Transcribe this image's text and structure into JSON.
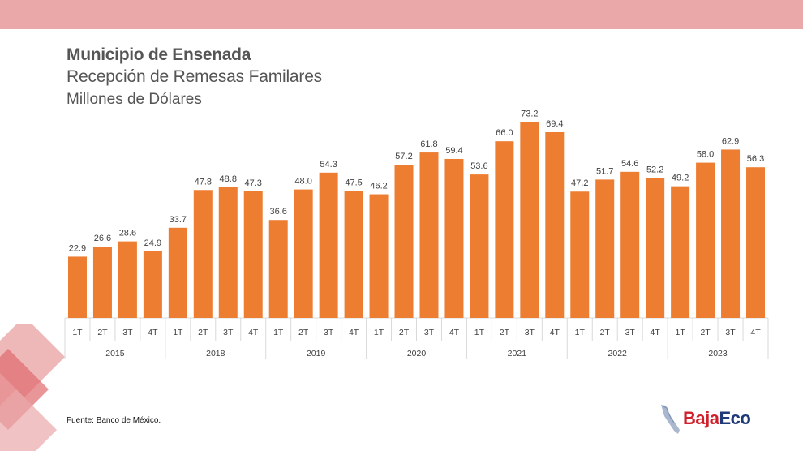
{
  "header": {
    "title": "Municipio de Ensenada",
    "subtitle": "Recepción de Remesas Familares",
    "unit": "Millones de Dólares"
  },
  "footer": {
    "source": "Fuente: Banco de México."
  },
  "logo": {
    "part1": "Baja",
    "part2": "Eco",
    "colors": {
      "baja": "#d0202a",
      "eco": "#1f3a78"
    }
  },
  "colors": {
    "bar": "#ed7d31",
    "top_band": "#eaa8a9",
    "decoration": "#e06a6d"
  },
  "chart_data": {
    "type": "bar",
    "title": "Recepción de Remesas Familares",
    "ylabel": "Millones de Dólares",
    "ylim": [
      0,
      80
    ],
    "grid": false,
    "data_labels": true,
    "groups": [
      {
        "year": "2015",
        "quarters": [
          "1T",
          "2T",
          "3T",
          "4T"
        ],
        "values": [
          22.9,
          26.6,
          28.6,
          24.9
        ]
      },
      {
        "year": "2018",
        "quarters": [
          "1T",
          "2T",
          "3T",
          "4T"
        ],
        "values": [
          33.7,
          47.8,
          48.8,
          47.3
        ]
      },
      {
        "year": "2019",
        "quarters": [
          "1T",
          "2T",
          "3T",
          "4T"
        ],
        "values": [
          36.6,
          48.0,
          54.3,
          47.5
        ]
      },
      {
        "year": "2020",
        "quarters": [
          "1T",
          "2T",
          "3T",
          "4T"
        ],
        "values": [
          46.2,
          57.2,
          61.8,
          59.4
        ]
      },
      {
        "year": "2021",
        "quarters": [
          "1T",
          "2T",
          "3T",
          "4T"
        ],
        "values": [
          53.6,
          66.0,
          73.2,
          69.4
        ]
      },
      {
        "year": "2022",
        "quarters": [
          "1T",
          "2T",
          "3T",
          "4T"
        ],
        "values": [
          47.2,
          51.7,
          54.6,
          52.2
        ]
      },
      {
        "year": "2023",
        "quarters": [
          "1T",
          "2T",
          "3T",
          "4T"
        ],
        "values": [
          49.2,
          58.0,
          62.9,
          56.3
        ]
      }
    ]
  }
}
